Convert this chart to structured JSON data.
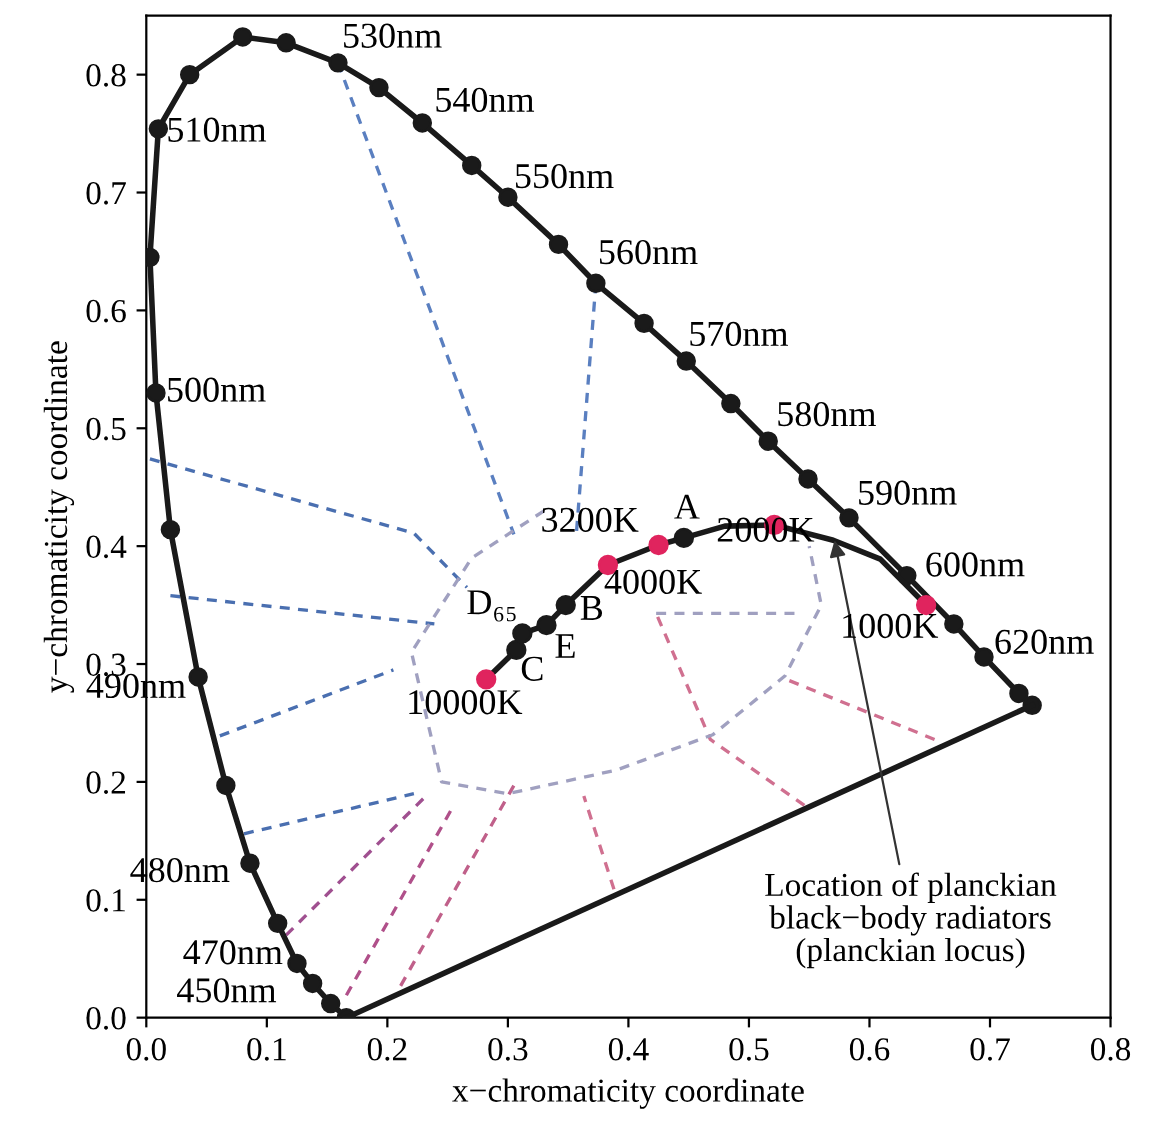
{
  "chart_data": {
    "type": "line",
    "xlabel": "x−chromaticity coordinate",
    "ylabel": "y−chromaticity coordinate",
    "xlim": [
      0,
      0.8
    ],
    "ylim": [
      0,
      0.85
    ],
    "xticks": [
      {
        "value": 0,
        "label": "0.0"
      },
      0.1,
      0.2,
      0.3,
      0.4,
      0.5,
      0.6,
      0.7,
      0.8
    ],
    "yticks": [
      {
        "value": 0,
        "label": "0.0"
      },
      0.1,
      0.2,
      0.3,
      0.4,
      0.5,
      0.6,
      0.7,
      0.8
    ],
    "grid": false,
    "series": [
      {
        "color": "#1a1a1a",
        "marker": "circle",
        "line_style": "solid",
        "x": [
          0.166,
          0.153,
          0.138,
          0.125,
          0.109,
          0.086,
          0.066,
          0.043,
          0.02,
          0.008,
          0.003,
          0.01,
          0.036,
          0.08,
          0.116,
          0.159,
          0.193,
          0.229,
          0.27,
          0.3,
          0.342,
          0.373,
          0.413,
          0.448,
          0.485,
          0.516,
          0.549,
          0.583,
          0.631,
          0.67,
          0.695,
          0.724,
          0.735
        ],
        "values": [
          0.0,
          0.012,
          0.029,
          0.046,
          0.08,
          0.131,
          0.197,
          0.289,
          0.414,
          0.53,
          0.645,
          0.754,
          0.8,
          0.832,
          0.827,
          0.81,
          0.789,
          0.759,
          0.723,
          0.696,
          0.656,
          0.623,
          0.589,
          0.557,
          0.521,
          0.489,
          0.457,
          0.424,
          0.375,
          0.334,
          0.306,
          0.275,
          0.265
        ]
      },
      {
        "color": "#1a1a1a",
        "marker": "none",
        "line_style": "solid",
        "x": [
          0.166,
          0.735
        ],
        "values": [
          0.0,
          0.265
        ]
      },
      {
        "color": "#1a1a1a",
        "marker": "none",
        "line_style": "solid",
        "x": [
          0.282,
          0.307,
          0.312,
          0.332,
          0.348,
          0.383,
          0.425,
          0.446,
          0.48,
          0.521,
          0.57,
          0.609,
          0.647
        ],
        "values": [
          0.287,
          0.312,
          0.326,
          0.333,
          0.35,
          0.384,
          0.401,
          0.407,
          0.417,
          0.418,
          0.405,
          0.389,
          0.35
        ]
      },
      {
        "type": "scatter",
        "color": "#1a1a1a",
        "marker": "circle",
        "x": [
          0.307,
          0.312,
          0.332,
          0.348,
          0.446
        ],
        "values": [
          0.312,
          0.326,
          0.333,
          0.35,
          0.407
        ]
      },
      {
        "type": "scatter",
        "color": "#e0245e",
        "marker": "circle",
        "x": [
          0.282,
          0.383,
          0.425,
          0.521,
          0.647
        ],
        "values": [
          0.287,
          0.384,
          0.401,
          0.418,
          0.35
        ]
      },
      {
        "color": "#5a7fc0",
        "marker": "none",
        "line_style": "dashed",
        "x": [
          0.159,
          0.305
        ],
        "values": [
          0.81,
          0.41
        ]
      },
      {
        "color": "#5a7fc0",
        "marker": "none",
        "line_style": "dashed",
        "x": [
          0.373,
          0.357
        ],
        "values": [
          0.623,
          0.413
        ]
      },
      {
        "color": "#4a6fb0",
        "marker": "none",
        "line_style": "dashed",
        "x": [
          0.003,
          0.222,
          0.266
        ],
        "values": [
          0.474,
          0.411,
          0.365
        ]
      },
      {
        "color": "#4a6fb0",
        "marker": "none",
        "line_style": "dashed",
        "x": [
          0.02,
          0.239
        ],
        "values": [
          0.358,
          0.334
        ]
      },
      {
        "color": "#4a6fb0",
        "marker": "none",
        "line_style": "dashed",
        "x": [
          0.061,
          0.205
        ],
        "values": [
          0.239,
          0.295
        ]
      },
      {
        "color": "#4a6fb0",
        "marker": "none",
        "line_style": "dashed",
        "x": [
          0.081,
          0.222
        ],
        "values": [
          0.156,
          0.19
        ]
      },
      {
        "color": "#a05090",
        "marker": "none",
        "line_style": "dashed",
        "x": [
          0.116,
          0.232
        ],
        "values": [
          0.07,
          0.188
        ]
      },
      {
        "color": "#b0508a",
        "marker": "none",
        "line_style": "dashed",
        "x": [
          0.166,
          0.255
        ],
        "values": [
          0.019,
          0.18
        ]
      },
      {
        "color": "#c0608a",
        "marker": "none",
        "line_style": "dashed",
        "x": [
          0.211,
          0.305
        ],
        "values": [
          0.027,
          0.197
        ]
      },
      {
        "color": "#d07090",
        "marker": "none",
        "line_style": "dashed",
        "x": [
          0.388,
          0.363
        ],
        "values": [
          0.109,
          0.188
        ]
      },
      {
        "color": "#d07090",
        "marker": "none",
        "line_style": "dashed",
        "x": [
          0.546,
          0.468,
          0.423
        ],
        "values": [
          0.18,
          0.236,
          0.343
        ]
      },
      {
        "color": "#d07090",
        "marker": "none",
        "line_style": "dashed",
        "x": [
          0.654,
          0.531
        ],
        "values": [
          0.236,
          0.287
        ]
      },
      {
        "color": "#a0a0c0",
        "marker": "none",
        "line_style": "dashed",
        "x": [
          0.423,
          0.54
        ],
        "values": [
          0.343,
          0.343
        ]
      },
      {
        "color": "#a0a0c0",
        "marker": "none",
        "line_style": "dashed",
        "x": [
          0.33,
          0.27,
          0.22,
          0.245,
          0.3,
          0.39,
          0.47,
          0.53,
          0.56,
          0.55
        ],
        "values": [
          0.43,
          0.39,
          0.31,
          0.2,
          0.19,
          0.21,
          0.24,
          0.29,
          0.35,
          0.4
        ]
      }
    ],
    "annotations": [
      {
        "text": "530nm",
        "x": 0.159,
        "y": 0.81
      },
      {
        "text": "540nm",
        "x": 0.229,
        "y": 0.759
      },
      {
        "text": "550nm",
        "x": 0.3,
        "y": 0.696
      },
      {
        "text": "560nm",
        "x": 0.373,
        "y": 0.623
      },
      {
        "text": "570nm",
        "x": 0.448,
        "y": 0.557
      },
      {
        "text": "580nm",
        "x": 0.516,
        "y": 0.489
      },
      {
        "text": "590nm",
        "x": 0.583,
        "y": 0.424
      },
      {
        "text": "600nm",
        "x": 0.631,
        "y": 0.375
      },
      {
        "text": "620nm",
        "x": 0.695,
        "y": 0.306
      },
      {
        "text": "510nm",
        "x": 0.01,
        "y": 0.754
      },
      {
        "text": "500nm",
        "x": 0.008,
        "y": 0.53
      },
      {
        "text": "490nm",
        "x": 0.043,
        "y": 0.289
      },
      {
        "text": "480nm",
        "x": 0.086,
        "y": 0.131
      },
      {
        "text": "470nm",
        "x": 0.125,
        "y": 0.046
      },
      {
        "text": "450nm",
        "x": 0.138,
        "y": 0.029
      },
      {
        "text": "10000K",
        "x": 0.282,
        "y": 0.287
      },
      {
        "text": "C",
        "x": 0.307,
        "y": 0.312
      },
      {
        "text": "E",
        "x": 0.332,
        "y": 0.333
      },
      {
        "text": "B",
        "x": 0.348,
        "y": 0.35
      },
      {
        "text": "D₆₅",
        "x": 0.312,
        "y": 0.326
      },
      {
        "text": "4000K",
        "x": 0.383,
        "y": 0.384
      },
      {
        "text": "3200K",
        "x": 0.425,
        "y": 0.401
      },
      {
        "text": "A",
        "x": 0.446,
        "y": 0.407
      },
      {
        "text": "2000K",
        "x": 0.521,
        "y": 0.418
      },
      {
        "text": "1000K",
        "x": 0.647,
        "y": 0.35
      },
      {
        "text": "Location of planckian\nblack−body radiators\n(planckian locus)",
        "x": 0.571,
        "y": 0.405
      }
    ]
  }
}
